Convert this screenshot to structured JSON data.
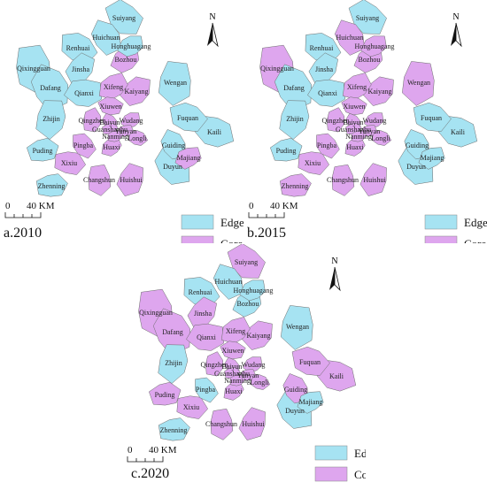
{
  "colors": {
    "edge": "#a6e3f2",
    "core": "#dea6ee",
    "border": "#6c6c6c"
  },
  "legend": {
    "edge": "Edge",
    "core": "Core"
  },
  "scalebar": {
    "zero": "0",
    "dist": "40 KM"
  },
  "north": "N",
  "panels": [
    {
      "id": "a",
      "title": "a.2010",
      "regions": [
        {
          "name": "Suiyang",
          "cls": "edge"
        },
        {
          "name": "Huichuan",
          "cls": "edge"
        },
        {
          "name": "Honghuagang",
          "cls": "edge"
        },
        {
          "name": "Renhuai",
          "cls": "edge"
        },
        {
          "name": "Bozhou",
          "cls": "core"
        },
        {
          "name": "Qixingguan",
          "cls": "edge"
        },
        {
          "name": "Jinsha",
          "cls": "edge"
        },
        {
          "name": "Dafang",
          "cls": "edge"
        },
        {
          "name": "Qianxi",
          "cls": "edge"
        },
        {
          "name": "Xifeng",
          "cls": "core"
        },
        {
          "name": "Kaiyang",
          "cls": "core"
        },
        {
          "name": "Wengan",
          "cls": "edge"
        },
        {
          "name": "Xiuwen",
          "cls": "core"
        },
        {
          "name": "Zhijin",
          "cls": "edge"
        },
        {
          "name": "Qingzhen",
          "cls": "core"
        },
        {
          "name": "Baiyun",
          "cls": "core"
        },
        {
          "name": "Wudang",
          "cls": "core"
        },
        {
          "name": "Fuquan",
          "cls": "edge"
        },
        {
          "name": "Guanshanhu",
          "cls": "core"
        },
        {
          "name": "Yunyan",
          "cls": "core"
        },
        {
          "name": "Nanming",
          "cls": "core"
        },
        {
          "name": "Longli",
          "cls": "core"
        },
        {
          "name": "Kaili",
          "cls": "edge"
        },
        {
          "name": "Puding",
          "cls": "edge"
        },
        {
          "name": "Pingba",
          "cls": "core"
        },
        {
          "name": "Huaxi",
          "cls": "core"
        },
        {
          "name": "Guiding",
          "cls": "edge"
        },
        {
          "name": "Majiang",
          "cls": "core"
        },
        {
          "name": "Xixiu",
          "cls": "core"
        },
        {
          "name": "Duyun",
          "cls": "edge"
        },
        {
          "name": "Changshun",
          "cls": "core"
        },
        {
          "name": "Huishui",
          "cls": "core"
        },
        {
          "name": "Zhenning",
          "cls": "edge"
        }
      ]
    },
    {
      "id": "b",
      "title": "b.2015",
      "regions": [
        {
          "name": "Suiyang",
          "cls": "edge"
        },
        {
          "name": "Huichuan",
          "cls": "core"
        },
        {
          "name": "Honghuagang",
          "cls": "core"
        },
        {
          "name": "Renhuai",
          "cls": "edge"
        },
        {
          "name": "Bozhou",
          "cls": "core"
        },
        {
          "name": "Qixingguan",
          "cls": "core"
        },
        {
          "name": "Jinsha",
          "cls": "edge"
        },
        {
          "name": "Dafang",
          "cls": "edge"
        },
        {
          "name": "Qianxi",
          "cls": "edge"
        },
        {
          "name": "Xifeng",
          "cls": "core"
        },
        {
          "name": "Kaiyang",
          "cls": "core"
        },
        {
          "name": "Wengan",
          "cls": "core"
        },
        {
          "name": "Xiuwen",
          "cls": "core"
        },
        {
          "name": "Zhijin",
          "cls": "edge"
        },
        {
          "name": "Qingzhen",
          "cls": "core"
        },
        {
          "name": "Baiyun",
          "cls": "core"
        },
        {
          "name": "Wudang",
          "cls": "core"
        },
        {
          "name": "Fuquan",
          "cls": "edge"
        },
        {
          "name": "Guanshanhu",
          "cls": "core"
        },
        {
          "name": "Yunyan",
          "cls": "core"
        },
        {
          "name": "Nanming",
          "cls": "core"
        },
        {
          "name": "Longli",
          "cls": "core"
        },
        {
          "name": "Kaili",
          "cls": "edge"
        },
        {
          "name": "Puding",
          "cls": "edge"
        },
        {
          "name": "Pingba",
          "cls": "core"
        },
        {
          "name": "Huaxi",
          "cls": "core"
        },
        {
          "name": "Guiding",
          "cls": "edge"
        },
        {
          "name": "Majiang",
          "cls": "edge"
        },
        {
          "name": "Xixiu",
          "cls": "core"
        },
        {
          "name": "Duyun",
          "cls": "edge"
        },
        {
          "name": "Changshun",
          "cls": "core"
        },
        {
          "name": "Huishui",
          "cls": "core"
        },
        {
          "name": "Zhenning",
          "cls": "core"
        }
      ]
    },
    {
      "id": "c",
      "title": "c.2020",
      "regions": [
        {
          "name": "Suiyang",
          "cls": "core"
        },
        {
          "name": "Huichuan",
          "cls": "edge"
        },
        {
          "name": "Honghuagang",
          "cls": "edge"
        },
        {
          "name": "Renhuai",
          "cls": "edge"
        },
        {
          "name": "Bozhou",
          "cls": "edge"
        },
        {
          "name": "Qixingguan",
          "cls": "core"
        },
        {
          "name": "Jinsha",
          "cls": "core"
        },
        {
          "name": "Dafang",
          "cls": "core"
        },
        {
          "name": "Qianxi",
          "cls": "core"
        },
        {
          "name": "Xifeng",
          "cls": "core"
        },
        {
          "name": "Kaiyang",
          "cls": "core"
        },
        {
          "name": "Wengan",
          "cls": "edge"
        },
        {
          "name": "Xiuwen",
          "cls": "core"
        },
        {
          "name": "Zhijin",
          "cls": "edge"
        },
        {
          "name": "Qingzhen",
          "cls": "core"
        },
        {
          "name": "Baiyun",
          "cls": "core"
        },
        {
          "name": "Wudang",
          "cls": "core"
        },
        {
          "name": "Fuquan",
          "cls": "core"
        },
        {
          "name": "Guanshanhu",
          "cls": "core"
        },
        {
          "name": "Yunyan",
          "cls": "core"
        },
        {
          "name": "Nanming",
          "cls": "core"
        },
        {
          "name": "Longli",
          "cls": "core"
        },
        {
          "name": "Kaili",
          "cls": "core"
        },
        {
          "name": "Puding",
          "cls": "core"
        },
        {
          "name": "Pingba",
          "cls": "edge"
        },
        {
          "name": "Huaxi",
          "cls": "core"
        },
        {
          "name": "Guiding",
          "cls": "core"
        },
        {
          "name": "Majiang",
          "cls": "edge"
        },
        {
          "name": "Xixiu",
          "cls": "core"
        },
        {
          "name": "Duyun",
          "cls": "edge"
        },
        {
          "name": "Changshun",
          "cls": "core"
        },
        {
          "name": "Huishui",
          "cls": "core"
        },
        {
          "name": "Zhenning",
          "cls": "edge"
        }
      ]
    }
  ]
}
